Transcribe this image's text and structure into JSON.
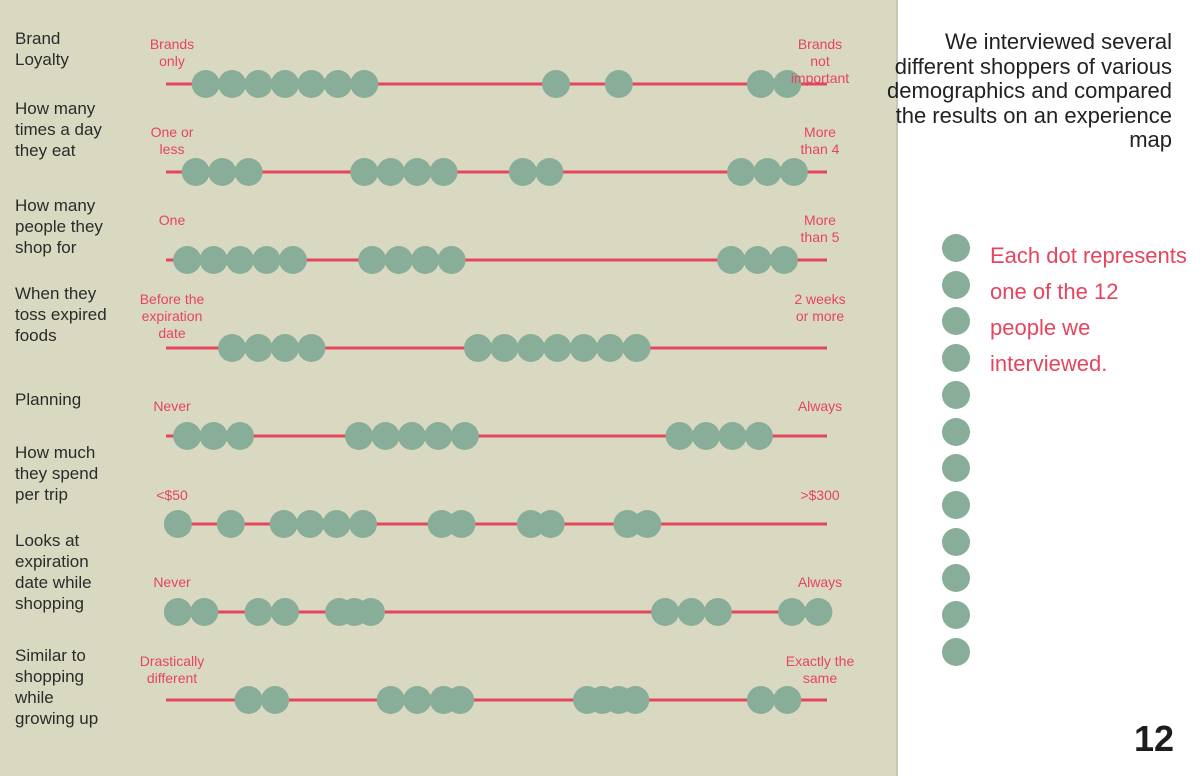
{
  "chart_data": {
    "type": "scatter",
    "subtype": "semantic-differential dot plot",
    "scale_range": [
      0,
      1
    ],
    "dot_color": "#88ad98",
    "line_color": "#e5455f",
    "rows": [
      {
        "label": "Brand\nLoyalty",
        "left": "Brands\nonly",
        "right": "Brands\nnot\nimportant",
        "values": [
          0.06,
          0.1,
          0.14,
          0.18,
          0.22,
          0.26,
          0.3,
          0.59,
          0.685,
          0.9,
          0.94
        ]
      },
      {
        "label": "How many\ntimes a day\nthey eat",
        "left": "One or\nless",
        "right": "More\nthan 4",
        "values": [
          0.045,
          0.085,
          0.125,
          0.3,
          0.34,
          0.38,
          0.42,
          0.54,
          0.58,
          0.87,
          0.91,
          0.95
        ]
      },
      {
        "label": "How many\npeople they\nshop for",
        "left": "One",
        "right": "More\nthan 5",
        "values": [
          0.032,
          0.072,
          0.112,
          0.152,
          0.192,
          0.312,
          0.352,
          0.392,
          0.432,
          0.855,
          0.895,
          0.935
        ]
      },
      {
        "label": "When they\ntoss expired\nfoods",
        "left": "Before the\nexpiration\ndate",
        "right": "2 weeks\nor more",
        "values": [
          0.1,
          0.14,
          0.18,
          0.22,
          0.472,
          0.512,
          0.552,
          0.592,
          0.632,
          0.672,
          0.712
        ]
      },
      {
        "label": "Planning",
        "left": "Never",
        "right": "Always",
        "values": [
          0.032,
          0.072,
          0.112,
          0.292,
          0.332,
          0.372,
          0.412,
          0.452,
          0.777,
          0.817,
          0.857,
          0.897
        ]
      },
      {
        "label": "How much\nthey spend\nper trip",
        "left": "<$50",
        "right": ">$300",
        "values": [
          0.018,
          0.098,
          0.178,
          0.218,
          0.258,
          0.298,
          0.417,
          0.447,
          0.552,
          0.582,
          0.698,
          0.728
        ]
      },
      {
        "label": "Looks at\nexpiration\ndate while\nshopping",
        "left": "Never",
        "right": "Always",
        "values": [
          0.018,
          0.058,
          0.14,
          0.18,
          0.262,
          0.285,
          0.31,
          0.755,
          0.795,
          0.835,
          0.947,
          0.987
        ]
      },
      {
        "label": "Similar to\nshopping\nwhile\ngrowing up",
        "left": "Drastically\ndifferent",
        "right": "Exactly the\nsame",
        "values": [
          0.125,
          0.165,
          0.34,
          0.38,
          0.42,
          0.445,
          0.637,
          0.66,
          0.685,
          0.71,
          0.9,
          0.94
        ]
      }
    ]
  },
  "intro_text": "We interviewed several different shoppers of various demographics and compared the results on an experience map",
  "legend_text": "Each dot represents one of the 12 people we interviewed.",
  "legend_dot_count": 12,
  "page_number": "12"
}
